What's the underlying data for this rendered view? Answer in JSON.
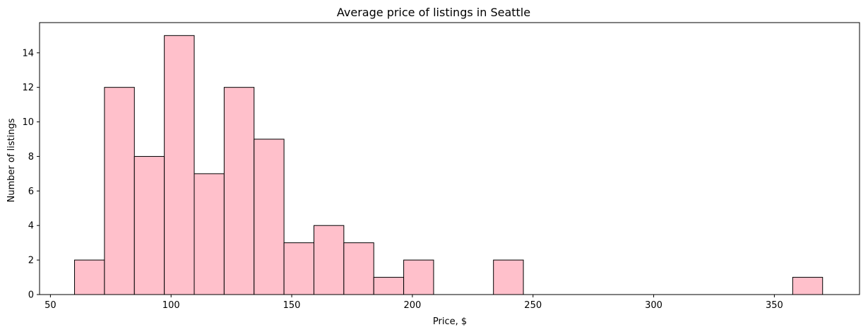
{
  "chart_data": {
    "type": "bar",
    "title": "Average price of listings in Seattle",
    "xlabel": "Price, $",
    "ylabel": "Number of listings",
    "xlim": [
      45.5,
      385.3
    ],
    "ylim": [
      0,
      15.75
    ],
    "xticks": [
      50,
      100,
      150,
      200,
      250,
      300,
      350
    ],
    "yticks": [
      0,
      2,
      4,
      6,
      8,
      10,
      12,
      14
    ],
    "grid": false,
    "bar_color": "#FFC0CB",
    "edge_color": "#000000",
    "bins": [
      {
        "x0": 60,
        "x1": 72.4,
        "count": 2
      },
      {
        "x0": 72.4,
        "x1": 84.8,
        "count": 12
      },
      {
        "x0": 84.8,
        "x1": 97.2,
        "count": 8
      },
      {
        "x0": 97.2,
        "x1": 109.6,
        "count": 15
      },
      {
        "x0": 109.6,
        "x1": 122.0,
        "count": 7
      },
      {
        "x0": 122.0,
        "x1": 134.4,
        "count": 12
      },
      {
        "x0": 134.4,
        "x1": 146.8,
        "count": 9
      },
      {
        "x0": 146.8,
        "x1": 159.2,
        "count": 3
      },
      {
        "x0": 159.2,
        "x1": 171.6,
        "count": 4
      },
      {
        "x0": 171.6,
        "x1": 184.0,
        "count": 3
      },
      {
        "x0": 184.0,
        "x1": 196.4,
        "count": 1
      },
      {
        "x0": 196.4,
        "x1": 208.8,
        "count": 2
      },
      {
        "x0": 208.8,
        "x1": 221.2,
        "count": 0
      },
      {
        "x0": 221.2,
        "x1": 233.6,
        "count": 0
      },
      {
        "x0": 233.6,
        "x1": 246.0,
        "count": 2
      },
      {
        "x0": 246.0,
        "x1": 258.4,
        "count": 0
      },
      {
        "x0": 258.4,
        "x1": 270.8,
        "count": 0
      },
      {
        "x0": 270.8,
        "x1": 283.2,
        "count": 0
      },
      {
        "x0": 283.2,
        "x1": 295.6,
        "count": 0
      },
      {
        "x0": 295.6,
        "x1": 308.0,
        "count": 0
      },
      {
        "x0": 308.0,
        "x1": 320.4,
        "count": 0
      },
      {
        "x0": 320.4,
        "x1": 332.8,
        "count": 0
      },
      {
        "x0": 332.8,
        "x1": 345.2,
        "count": 0
      },
      {
        "x0": 345.2,
        "x1": 357.6,
        "count": 0
      },
      {
        "x0": 357.6,
        "x1": 370.0,
        "count": 1
      }
    ]
  }
}
